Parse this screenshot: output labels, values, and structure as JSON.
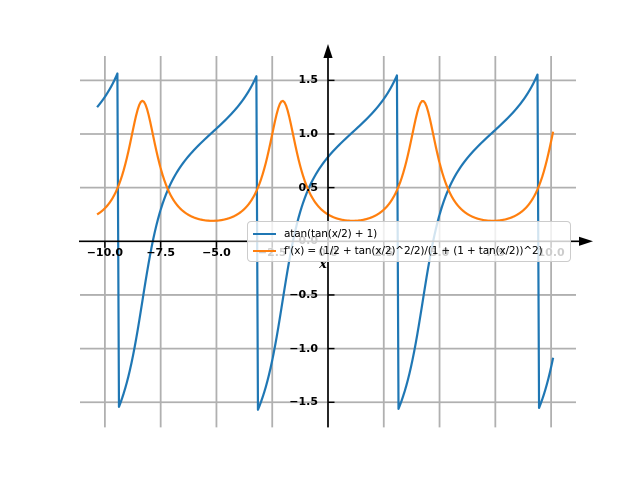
{
  "chart_data": {
    "type": "line",
    "title": "",
    "xlabel": "x",
    "ylabel": "",
    "xlim": [
      -11.1,
      11.1
    ],
    "ylim": [
      -1.73,
      1.72
    ],
    "x_ticks": [
      -10.0,
      -7.5,
      -5.0,
      -2.5,
      0.0,
      2.5,
      5.0,
      7.5,
      10.0
    ],
    "x_tick_labels": [
      "−10.0",
      "−7.5",
      "−5.0",
      "−2.5",
      "0.0",
      "2.5",
      "5.0",
      "7.5",
      "10.0"
    ],
    "y_ticks": [
      -1.5,
      -1.0,
      -0.5,
      0.0,
      0.5,
      1.0,
      1.5
    ],
    "y_tick_labels": [
      "−1.5",
      "−1.0",
      "−0.5",
      "0.0",
      "0.5",
      "1.0",
      "1.5"
    ],
    "grid": true,
    "grid_color": "#b0b0b0",
    "axis_color": "#000000",
    "background_color": "#ffffff",
    "axes_style": "centered spines through origin with arrowheads",
    "legend": {
      "location": "center",
      "frame": true,
      "framealpha": 0.8,
      "entries": [
        {
          "label": "atan(tan(x/2) + 1)",
          "color": "#1f77b4"
        },
        {
          "label": "f'(x) = (1/2 + tan(x/2)^2/2)/(1 + (1 + tan(x/2))^2)",
          "color": "#ff7f0e"
        }
      ]
    },
    "series": [
      {
        "name": "atan(tan(x/2) + 1)",
        "expression": "atan(tan(x/2) + 1)",
        "color": "#1f77b4",
        "linewidth": 2,
        "x_range": [
          -10.35,
          10.1
        ],
        "period": 6.2832,
        "discontinuities_x": [
          -9.4248,
          -3.1416,
          3.1416,
          9.4248
        ],
        "jump_from_to_y": [
          1.5708,
          -1.5708
        ],
        "value_at_x0": 0.7854
      },
      {
        "name": "f'(x) = (1/2 + tan(x/2)^2/2)/(1 + (1 + tan(x/2))^2)",
        "expression": "(1/2 + tan(x/2)^2/2) / (1 + (1 + tan(x/2))^2)",
        "color": "#ff7f0e",
        "linewidth": 2,
        "x_range": [
          -10.35,
          10.1
        ],
        "period": 6.2832,
        "maxima_x": [
          -8.3168,
          -2.0344,
          4.2488
        ],
        "maxima_y": 1.309,
        "minima_x": [
          -5.176,
          1.1071,
          7.3903
        ],
        "minima_y": 0.191,
        "value_at_x0": 0.25
      }
    ]
  }
}
